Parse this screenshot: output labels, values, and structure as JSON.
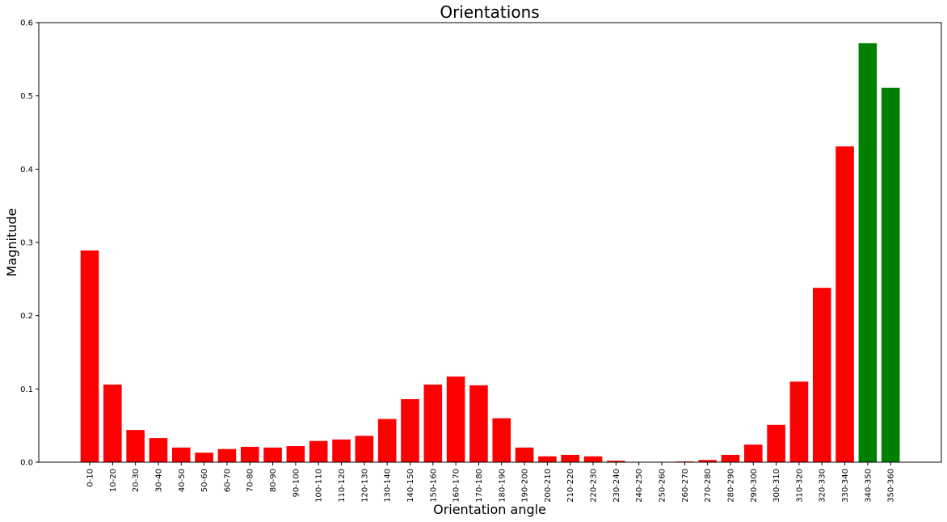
{
  "chart_data": {
    "type": "bar",
    "title": "Orientations",
    "xlabel": "Orientation angle",
    "ylabel": "Magnitude",
    "ylim": [
      0,
      0.6
    ],
    "yticks": [
      "0.0",
      "0.1",
      "0.2",
      "0.3",
      "0.4",
      "0.5",
      "0.6"
    ],
    "grid": false,
    "colors": {
      "default": "#ff0000",
      "highlight": "#008000"
    },
    "categories": [
      "0-10",
      "10-20",
      "20-30",
      "30-40",
      "40-50",
      "50-60",
      "60-70",
      "70-80",
      "80-90",
      "90-100",
      "100-110",
      "110-120",
      "120-130",
      "130-140",
      "140-150",
      "150-160",
      "160-170",
      "170-180",
      "180-190",
      "190-200",
      "200-210",
      "210-220",
      "220-230",
      "230-240",
      "240-250",
      "250-260",
      "260-270",
      "270-280",
      "280-290",
      "290-300",
      "300-310",
      "310-320",
      "320-330",
      "330-340",
      "340-350",
      "350-360"
    ],
    "values": [
      0.289,
      0.106,
      0.044,
      0.033,
      0.02,
      0.013,
      0.018,
      0.021,
      0.02,
      0.022,
      0.029,
      0.031,
      0.036,
      0.059,
      0.086,
      0.106,
      0.117,
      0.105,
      0.06,
      0.02,
      0.008,
      0.01,
      0.008,
      0.002,
      0.0,
      0.0,
      0.001,
      0.003,
      0.01,
      0.024,
      0.051,
      0.11,
      0.238,
      0.431,
      0.572,
      0.511
    ],
    "highlight": [
      "340-350",
      "350-360"
    ]
  }
}
